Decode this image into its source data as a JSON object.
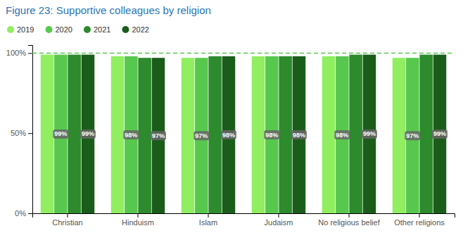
{
  "chart_data": {
    "type": "bar",
    "title": "Figure 23: Supportive colleagues by religion",
    "categories": [
      "Christian",
      "Hinduism",
      "Islam",
      "Judaism",
      "No religious belief",
      "Other religions"
    ],
    "series": [
      {
        "name": "2019",
        "color": "#90ee60",
        "values": [
          99,
          98,
          97,
          98,
          98,
          97
        ]
      },
      {
        "name": "2020",
        "color": "#57c84d",
        "values": [
          99,
          98,
          97,
          98,
          98,
          97
        ],
        "value_labels": [
          "99%",
          "98%",
          "97%",
          "98%",
          "98%",
          "97%"
        ]
      },
      {
        "name": "2021",
        "color": "#2d8a2d",
        "values": [
          99,
          97,
          98,
          98,
          99,
          99
        ]
      },
      {
        "name": "2022",
        "color": "#1a5c1a",
        "values": [
          99,
          97,
          98,
          98,
          99,
          99
        ],
        "value_labels": [
          "99%",
          "97%",
          "98%",
          "98%",
          "99%",
          "99%"
        ]
      }
    ],
    "ref_line": {
      "value": 100,
      "color": "#57c84d",
      "line_style": "dashed"
    },
    "ylim": [
      0,
      105
    ],
    "yticks": [
      {
        "value": 0,
        "label": "0%"
      },
      {
        "value": 50,
        "label": "50%"
      },
      {
        "value": 100,
        "label": "100%"
      }
    ],
    "grid": false,
    "legend": "top-left"
  }
}
